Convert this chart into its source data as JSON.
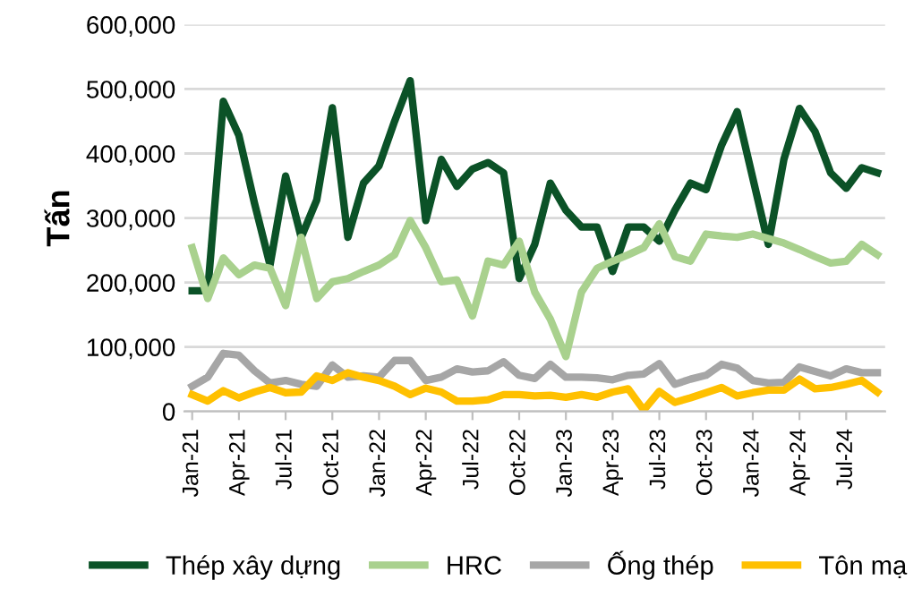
{
  "chart_data": {
    "type": "line",
    "ylabel": "Tấn",
    "categories": [
      "Jan-21",
      null,
      null,
      "Apr-21",
      null,
      null,
      "Jul-21",
      null,
      null,
      "Oct-21",
      null,
      null,
      "Jan-22",
      null,
      null,
      "Apr-22",
      null,
      null,
      "Jul-22",
      null,
      null,
      "Oct-22",
      null,
      null,
      "Jan-23",
      null,
      null,
      "Apr-23",
      null,
      null,
      "Jul-23",
      null,
      null,
      "Oct-23",
      null,
      null,
      "Jan-24",
      null,
      null,
      "Apr-24",
      null,
      null,
      "Jul-24",
      null,
      null
    ],
    "series": [
      {
        "name": "Thép xây dựng",
        "color": "#0b5227",
        "values": [
          187000,
          187000,
          481000,
          428000,
          323000,
          227000,
          365000,
          270000,
          328000,
          471000,
          270000,
          354000,
          381000,
          450000,
          513000,
          296000,
          391000,
          349000,
          376000,
          386000,
          370000,
          206000,
          259000,
          354000,
          312000,
          286000,
          286000,
          217000,
          286000,
          286000,
          264000,
          312000,
          354000,
          344000,
          413000,
          465000,
          362000,
          259000,
          391000,
          470000,
          434000,
          370000,
          346000,
          378000,
          370000
        ]
      },
      {
        "name": "HRC",
        "color": "#a9d18e",
        "values": [
          254000,
          175000,
          238000,
          212000,
          227000,
          222000,
          164000,
          270000,
          175000,
          201000,
          206000,
          217000,
          227000,
          243000,
          296000,
          254000,
          201000,
          204000,
          148000,
          233000,
          227000,
          264000,
          185000,
          143000,
          85000,
          185000,
          222000,
          233000,
          243000,
          254000,
          291000,
          240000,
          233000,
          275000,
          272000,
          270000,
          275000,
          268000,
          261000,
          251000,
          240000,
          230000,
          233000,
          259000,
          243000
        ]
      },
      {
        "name": "Ống thép",
        "color": "#a6a6a6",
        "values": [
          39000,
          53000,
          90000,
          87000,
          63000,
          44000,
          48000,
          42000,
          39000,
          72000,
          53000,
          55000,
          53000,
          79000,
          79000,
          48000,
          53000,
          66000,
          61000,
          63000,
          77000,
          56000,
          51000,
          73000,
          53000,
          53000,
          52000,
          49000,
          56000,
          58000,
          74000,
          42000,
          50000,
          56000,
          73000,
          67000,
          48000,
          44000,
          45000,
          69000,
          62000,
          55000,
          66000,
          60000,
          60000
        ]
      },
      {
        "name": "Tôn mạ",
        "color": "#ffc000",
        "values": [
          26000,
          16000,
          32000,
          21000,
          30000,
          37000,
          29000,
          30000,
          55000,
          48000,
          60000,
          53000,
          48000,
          39000,
          26000,
          36000,
          30000,
          16000,
          16000,
          18000,
          26000,
          26000,
          24000,
          25000,
          22000,
          26000,
          22000,
          30000,
          35000,
          2000,
          31000,
          14000,
          21000,
          29000,
          37000,
          24000,
          29000,
          33000,
          33000,
          50000,
          35000,
          37000,
          42000,
          48000,
          30000
        ]
      }
    ],
    "ylim": [
      0,
      600000
    ],
    "yticks": [
      {
        "value": 0,
        "label": "0"
      },
      {
        "value": 100000,
        "label": "100,000"
      },
      {
        "value": 200000,
        "label": "200,000"
      },
      {
        "value": 300000,
        "label": "300,000"
      },
      {
        "value": 400000,
        "label": "400,000"
      },
      {
        "value": 500000,
        "label": "500,000"
      },
      {
        "value": 600000,
        "label": "600,000"
      }
    ],
    "grid": "y",
    "legend": "bottom",
    "marker": "none",
    "line_style": "solid"
  }
}
